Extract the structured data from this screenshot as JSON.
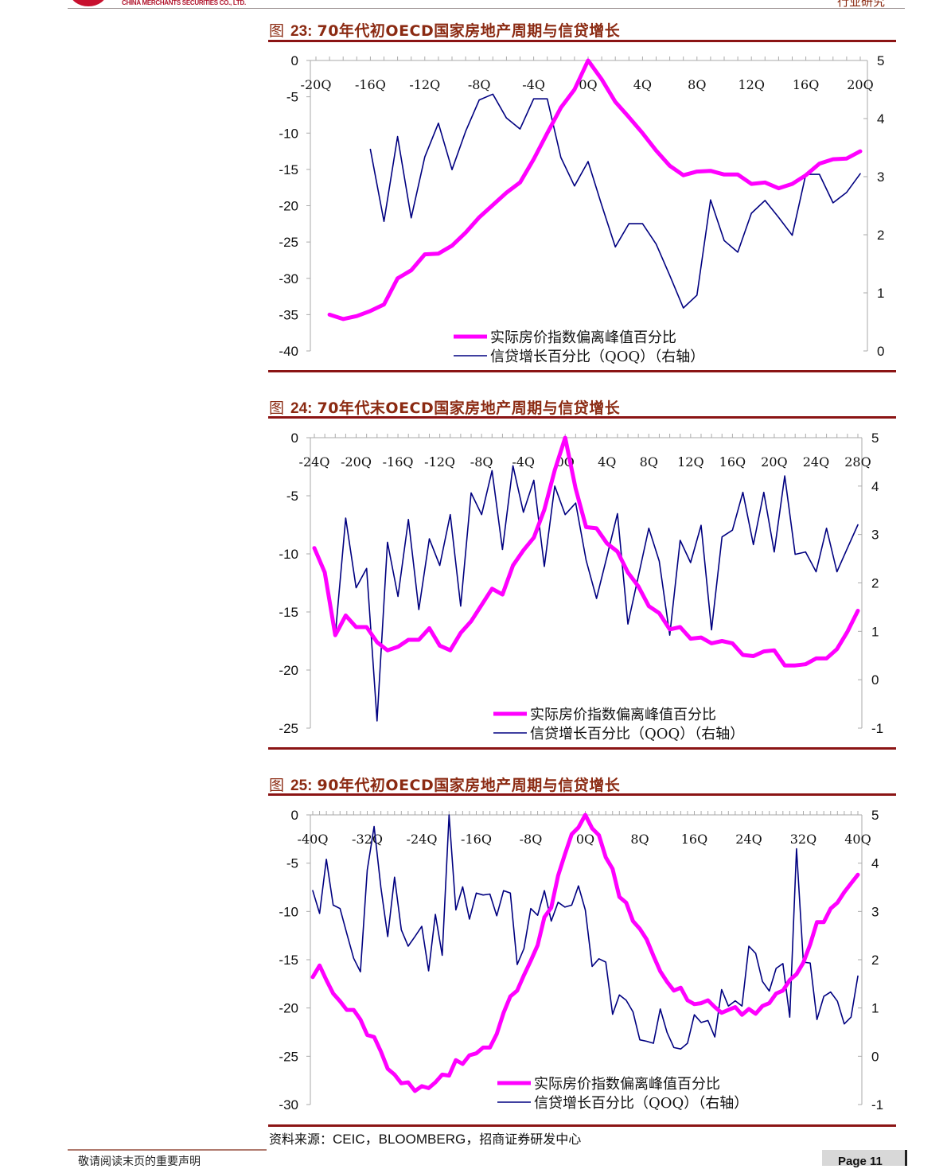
{
  "header": {
    "company": "CHINA MERCHANTS SECURITIES CO., LTD.",
    "section": "行业研究"
  },
  "figures": [
    {
      "prefix": "图",
      "number": "23:",
      "title": "70年代初OECD国家房地产周期与信贷增长"
    },
    {
      "prefix": "图",
      "number": "24:",
      "title": "70年代末OECD国家房地产周期与信贷增长"
    },
    {
      "prefix": "图",
      "number": "25:",
      "title": "90年代初OECD国家房地产周期与信贷增长"
    }
  ],
  "source": {
    "label": "资料来源：",
    "text": "CEIC，BLOOMBERG，",
    "suffix": "招商证券研发中心"
  },
  "footer": {
    "disclaimer": "敬请阅读末页的重要声明",
    "page": "Page 11"
  },
  "colors": {
    "house_price": "#FF00FF",
    "credit": "#000080",
    "accent": "#8B1414"
  },
  "chart_data": [
    {
      "type": "line",
      "title": "70年代初OECD国家房地产周期与信贷增长",
      "x_ticks": [
        "-20Q",
        "-16Q",
        "-12Q",
        "-8Q",
        "-4Q",
        "0Q",
        "4Q",
        "8Q",
        "12Q",
        "16Q",
        "20Q"
      ],
      "x_tick_values": [
        -20,
        -16,
        -12,
        -8,
        -4,
        0,
        4,
        8,
        12,
        16,
        20
      ],
      "xlim": [
        -20,
        20
      ],
      "ylim_left": [
        -40,
        0
      ],
      "y_ticks_left": [
        "0",
        "-5",
        "-10",
        "-15",
        "-20",
        "-25",
        "-30",
        "-35",
        "-40"
      ],
      "ylim_right": [
        0,
        5
      ],
      "y_ticks_right": [
        "5",
        "4",
        "3",
        "2",
        "1",
        "0"
      ],
      "legend": "bottom-center",
      "series": [
        {
          "name": "实际房价指数偏离峰值百分比",
          "axis": "left",
          "color": "#FF00FF",
          "x": [
            -19,
            -18,
            -17,
            -16,
            -15,
            -14,
            -13,
            -12,
            -11,
            -10,
            -9,
            -8,
            -7,
            -6,
            -5,
            -4,
            -3,
            -2,
            -1,
            0,
            1,
            2,
            3,
            4,
            5,
            6,
            7,
            8,
            9,
            10,
            11,
            12,
            13,
            14,
            15,
            16,
            17,
            18,
            19,
            20
          ],
          "values": [
            -35,
            -35.6,
            -35.2,
            -34.5,
            -33.6,
            -30,
            -28.9,
            -26.7,
            -26.6,
            -25.5,
            -23.7,
            -21.6,
            -19.9,
            -18.2,
            -16.8,
            -13.6,
            -10,
            -6.5,
            -4,
            0,
            -2.6,
            -5.7,
            -7.8,
            -10,
            -12.4,
            -14.5,
            -15.8,
            -15.3,
            -15.2,
            -15.7,
            -15.7,
            -17,
            -16.8,
            -17.6,
            -17,
            -15.8,
            -14.2,
            -13.6,
            -13.5,
            -12.5
          ]
        },
        {
          "name": "信贷增长百分比（QOQ）（右轴）",
          "axis": "right",
          "color": "#000080",
          "x": [
            -16,
            -15,
            -14,
            -13,
            -12,
            -11,
            -10,
            -9,
            -8,
            -7,
            -6,
            -5,
            -4,
            -3,
            -2,
            -1,
            0,
            1,
            2,
            3,
            4,
            5,
            6,
            7,
            8,
            9,
            10,
            11,
            12,
            13,
            14,
            15,
            16,
            17,
            18,
            19,
            20
          ],
          "values": [
            3.47,
            2.23,
            3.69,
            2.29,
            3.34,
            3.92,
            3.12,
            3.78,
            4.32,
            4.42,
            4.01,
            3.82,
            4.34,
            4.34,
            3.33,
            2.84,
            3.26,
            2.51,
            1.79,
            2.19,
            2.19,
            1.84,
            1.3,
            0.74,
            0.96,
            2.6,
            1.9,
            1.7,
            2.37,
            2.59,
            2.3,
            1.99,
            3.04,
            3.04,
            2.55,
            2.73,
            3.05
          ]
        }
      ]
    },
    {
      "type": "line",
      "title": "70年代末OECD国家房地产周期与信贷增长",
      "x_ticks": [
        "-24Q",
        "-20Q",
        "-16Q",
        "-12Q",
        "-8Q",
        "-4Q",
        "0Q",
        "4Q",
        "8Q",
        "12Q",
        "16Q",
        "20Q",
        "24Q",
        "28Q"
      ],
      "x_tick_values": [
        -24,
        -20,
        -16,
        -12,
        -8,
        -4,
        0,
        4,
        8,
        12,
        16,
        20,
        24,
        28
      ],
      "xlim": [
        -24,
        28
      ],
      "ylim_left": [
        -25,
        0
      ],
      "y_ticks_left": [
        "0",
        "-5",
        "-10",
        "-15",
        "-20",
        "-25"
      ],
      "ylim_right": [
        -1,
        5
      ],
      "y_ticks_right": [
        "5",
        "4",
        "3",
        "2",
        "1",
        "0",
        "-1"
      ],
      "legend": "bottom-center",
      "series": [
        {
          "name": "实际房价指数偏离峰值百分比",
          "axis": "left",
          "color": "#FF00FF",
          "x": [
            -24,
            -23,
            -22,
            -21,
            -20,
            -19,
            -18,
            -17,
            -16,
            -15,
            -14,
            -13,
            -12,
            -11,
            -10,
            -9,
            -8,
            -7,
            -6,
            -5,
            -4,
            -3,
            -2,
            -1,
            0,
            1,
            2,
            3,
            4,
            5,
            6,
            7,
            8,
            9,
            10,
            11,
            12,
            13,
            14,
            15,
            16,
            17,
            18,
            19,
            20,
            21,
            22,
            23,
            24,
            25,
            26,
            27,
            28
          ],
          "values": [
            -9.5,
            -11.6,
            -17,
            -15.3,
            -16.3,
            -16.3,
            -17.6,
            -18.3,
            -18,
            -17.4,
            -17.4,
            -16.4,
            -17.9,
            -18.3,
            -16.8,
            -15.8,
            -14.4,
            -13,
            -13.5,
            -11,
            -9.7,
            -8.6,
            -6.2,
            -2.8,
            0,
            -4.4,
            -7.7,
            -7.8,
            -9.1,
            -9.8,
            -11.6,
            -12.8,
            -14.5,
            -15.1,
            -16.5,
            -16.3,
            -17.3,
            -17.2,
            -17.7,
            -17.5,
            -17.7,
            -18.7,
            -18.8,
            -18.4,
            -18.3,
            -19.6,
            -19.6,
            -19.5,
            -19,
            -19,
            -18.2,
            -16.7,
            -14.9
          ]
        },
        {
          "name": "信贷增长百分比（QOQ）（右轴）",
          "axis": "right",
          "color": "#000080",
          "x": [
            -24,
            -23,
            -22,
            -21,
            -20,
            -19,
            -18,
            -17,
            -16,
            -15,
            -14,
            -13,
            -12,
            -11,
            -10,
            -9,
            -8,
            -7,
            -6,
            -5,
            -4,
            -3,
            -2,
            -1,
            0,
            1,
            2,
            3,
            4,
            5,
            6,
            7,
            8,
            9,
            10,
            11,
            12,
            13,
            14,
            15,
            16,
            17,
            18,
            19,
            20,
            21,
            22,
            23,
            24,
            25,
            26,
            27,
            28
          ],
          "values": [
            2.72,
            2.23,
            0.91,
            3.34,
            1.9,
            2.3,
            -0.85,
            2.84,
            1.72,
            3.31,
            1.45,
            2.91,
            2.36,
            3.41,
            1.52,
            3.86,
            3.41,
            4.32,
            2.69,
            4.42,
            3.46,
            4.12,
            2.34,
            4.0,
            3.41,
            3.65,
            2.47,
            1.68,
            2.55,
            3.43,
            1.15,
            2.14,
            3.13,
            2.45,
            0.92,
            2.88,
            2.42,
            3.19,
            1.03,
            2.95,
            3.09,
            3.87,
            2.79,
            3.87,
            2.64,
            4.21,
            2.59,
            2.64,
            2.23,
            3.13,
            2.23,
            2.72,
            3.2
          ]
        }
      ]
    },
    {
      "type": "line",
      "title": "90年代初OECD国家房地产周期与信贷增长",
      "x_ticks": [
        "-40Q",
        "-32Q",
        "-24Q",
        "-16Q",
        "-8Q",
        "0Q",
        "8Q",
        "16Q",
        "24Q",
        "32Q",
        "40Q"
      ],
      "x_tick_values": [
        -40,
        -32,
        -24,
        -16,
        -8,
        0,
        8,
        16,
        24,
        32,
        40
      ],
      "xlim": [
        -40,
        40
      ],
      "ylim_left": [
        -30,
        0
      ],
      "y_ticks_left": [
        "0",
        "-5",
        "-10",
        "-15",
        "-20",
        "-25",
        "-30"
      ],
      "ylim_right": [
        -1,
        5
      ],
      "y_ticks_right": [
        "5",
        "4",
        "3",
        "2",
        "1",
        "0",
        "-1"
      ],
      "legend": "bottom-center",
      "series": [
        {
          "name": "实际房价指数偏离峰值百分比",
          "axis": "left",
          "color": "#FF00FF",
          "x_start": -40,
          "values": [
            -16.8,
            -15.6,
            -17.1,
            -18.5,
            -19.3,
            -20.2,
            -20.2,
            -21.2,
            -22.8,
            -23,
            -24.5,
            -26.3,
            -26.9,
            -27.8,
            -27.7,
            -28.6,
            -28.1,
            -28.3,
            -27.7,
            -26.9,
            -27,
            -25.4,
            -25.8,
            -24.9,
            -24.7,
            -24.1,
            -24.1,
            -22.7,
            -20.5,
            -18.8,
            -18.2,
            -16.6,
            -15.1,
            -13.5,
            -10.6,
            -9.6,
            -6.3,
            -4.1,
            -2,
            -1.3,
            0,
            -1.4,
            -2.1,
            -4.4,
            -5.6,
            -8.5,
            -9.1,
            -11,
            -11.8,
            -12.9,
            -14.6,
            -16.2,
            -17.3,
            -18.2,
            -17.9,
            -19.2,
            -19.6,
            -19.5,
            -19.2,
            -19.9,
            -20.5,
            -20.2,
            -19.9,
            -20.7,
            -20.1,
            -20.6,
            -19.8,
            -19.5,
            -18.5,
            -18.2,
            -17.1,
            -16.5,
            -15.3,
            -13.4,
            -11.1,
            -11.1,
            -9.7,
            -9.1,
            -8,
            -7.1,
            -6.2
          ]
        },
        {
          "name": "信贷增长百分比（QOQ）（右轴）",
          "axis": "right",
          "color": "#000080",
          "x_start": -40,
          "values": [
            3.43,
            2.96,
            4.08,
            3.13,
            3.06,
            2.54,
            2.03,
            1.75,
            3.86,
            4.76,
            3.5,
            2.48,
            3.71,
            2.62,
            2.28,
            2.48,
            2.69,
            1.77,
            2.94,
            2.09,
            5.0,
            3.03,
            3.51,
            2.84,
            3.38,
            3.34,
            3.36,
            2.91,
            3.43,
            3.38,
            1.9,
            2.23,
            3.06,
            2.92,
            3.43,
            2.8,
            3.19,
            3.09,
            3.13,
            3.53,
            3.03,
            1.86,
            2.02,
            1.95,
            0.87,
            1.27,
            1.16,
            0.92,
            0.34,
            0.31,
            0.27,
            0.98,
            0.49,
            0.18,
            0.15,
            0.27,
            0.86,
            0.7,
            0.74,
            0.4,
            1.38,
            1.04,
            1.15,
            1.04,
            2.28,
            2.13,
            1.55,
            1.35,
            1.82,
            1.92,
            0.81,
            4.3,
            1.95,
            1.93,
            0.76,
            1.24,
            1.33,
            1.14,
            0.67,
            0.81,
            1.66
          ]
        }
      ]
    }
  ]
}
